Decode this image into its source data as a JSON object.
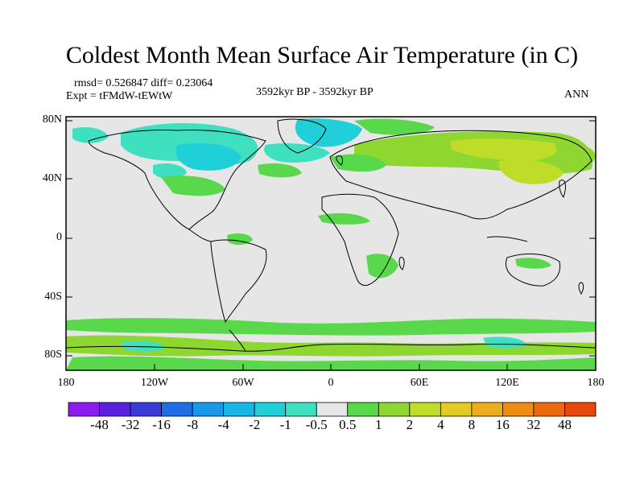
{
  "title": "Coldest Month Mean Surface Air Temperature (in C)",
  "stats": "rmsd= 0.526847  diff= 0.23064",
  "experiment": "Expt = tFMdW-tEWtW",
  "period": "3592kyr BP - 3592kyr BP",
  "season": "ANN",
  "axes": {
    "y_ticks": [
      "80N",
      "40N",
      "0",
      "40S",
      "80S"
    ],
    "x_ticks": [
      "180",
      "120W",
      "60W",
      "0",
      "60E",
      "120E",
      "180"
    ]
  },
  "colorbar": {
    "labels": [
      "-48",
      "-32",
      "-16",
      "-8",
      "-4",
      "-2",
      "-1",
      "-0.5",
      "0.5",
      "1",
      "2",
      "4",
      "8",
      "16",
      "32",
      "48"
    ],
    "colors": [
      "#8a1cf0",
      "#5a22e0",
      "#3a3ad8",
      "#1f6ee6",
      "#1898e8",
      "#14b7e6",
      "#1fd0d8",
      "#3ee0c0",
      "#e6e6e6",
      "#58d84a",
      "#8ed630",
      "#bedc28",
      "#e2cc24",
      "#eeae1c",
      "#ee8c14",
      "#ec6a0e",
      "#e8460a"
    ]
  },
  "map": {
    "ocean_color": "#e6e6e6",
    "coast_color": "#000000"
  }
}
